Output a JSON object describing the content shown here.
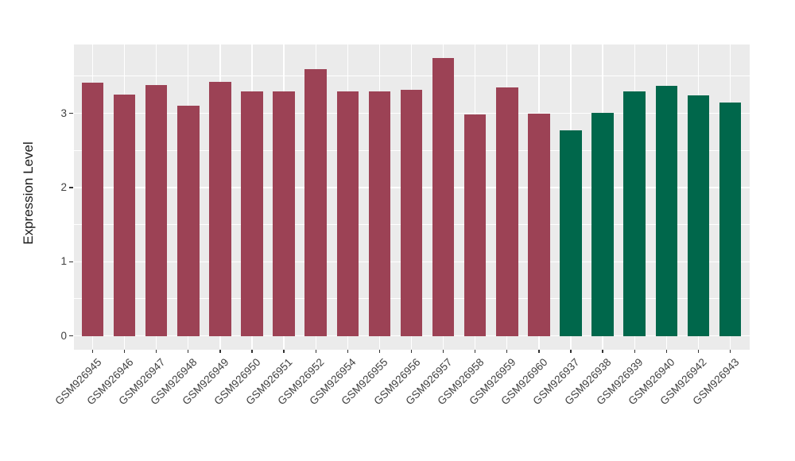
{
  "chart_data": {
    "type": "bar",
    "title": "",
    "xlabel": "",
    "ylabel": "Expression Level",
    "categories": [
      "GSM926945",
      "GSM926946",
      "GSM926947",
      "GSM926948",
      "GSM926949",
      "GSM926950",
      "GSM926951",
      "GSM926952",
      "GSM926954",
      "GSM926955",
      "GSM926956",
      "GSM926957",
      "GSM926958",
      "GSM926959",
      "GSM926960",
      "GSM926937",
      "GSM926938",
      "GSM926939",
      "GSM926940",
      "GSM926942",
      "GSM926943"
    ],
    "values": [
      3.41,
      3.25,
      3.38,
      3.1,
      3.42,
      3.29,
      3.3,
      3.6,
      3.3,
      3.3,
      3.32,
      3.74,
      2.98,
      3.35,
      3.0,
      2.77,
      3.01,
      3.3,
      3.37,
      3.24,
      3.14
    ],
    "bar_groups": [
      "group1",
      "group1",
      "group1",
      "group1",
      "group1",
      "group1",
      "group1",
      "group1",
      "group1",
      "group1",
      "group1",
      "group1",
      "group1",
      "group1",
      "group1",
      "group2",
      "group2",
      "group2",
      "group2",
      "group2",
      "group2"
    ],
    "group_colors": {
      "group1": "#9C4255",
      "group2": "#00674B"
    },
    "yticks": [
      0,
      1,
      2,
      3
    ],
    "minor_yticks": [
      0.5,
      1.5,
      2.5,
      3.5
    ],
    "ylim": [
      0,
      3.74
    ],
    "y_axis_range": [
      -0.187,
      3.927
    ],
    "grid": "on",
    "legend": "none",
    "panel_background": "#EBEBEB",
    "gridline_color": "#FFFFFF",
    "tick_color": "#333333"
  }
}
